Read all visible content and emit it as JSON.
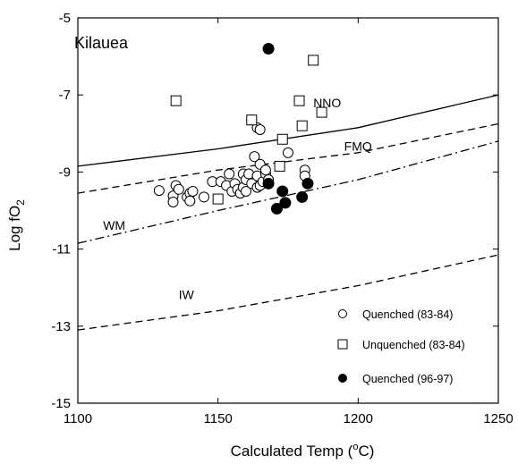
{
  "chart_data": {
    "type": "scatter",
    "title": "Kilauea",
    "xlabel": "Calculated Temp",
    "xlabel_unit_base": "(",
    "xlabel_unit_sup": "o",
    "xlabel_unit_rest": "C)",
    "ylabel_base": "Log fO",
    "ylabel_sub": "2",
    "xlim": [
      1100,
      1250
    ],
    "ylim": [
      -15,
      -5
    ],
    "x_ticks": [
      1100,
      1150,
      1200,
      1250
    ],
    "y_ticks": [
      -15,
      -13,
      -11,
      -9,
      -7,
      -5
    ],
    "grid": false,
    "legend_position": "bottom-right",
    "series": [
      {
        "name": "Quenched (83-84)",
        "marker": "open-circle",
        "points": [
          [
            1129,
            -9.48
          ],
          [
            1134,
            -9.62
          ],
          [
            1134,
            -9.78
          ],
          [
            1135,
            -9.35
          ],
          [
            1136,
            -9.45
          ],
          [
            1139,
            -9.65
          ],
          [
            1140,
            -9.55
          ],
          [
            1140,
            -9.75
          ],
          [
            1141,
            -9.5
          ],
          [
            1145,
            -9.65
          ],
          [
            1148,
            -9.25
          ],
          [
            1151,
            -9.25
          ],
          [
            1153,
            -9.35
          ],
          [
            1154,
            -9.05
          ],
          [
            1155,
            -9.5
          ],
          [
            1156,
            -9.3
          ],
          [
            1157,
            -9.45
          ],
          [
            1158,
            -9.55
          ],
          [
            1159,
            -9.05
          ],
          [
            1159,
            -9.4
          ],
          [
            1160,
            -9.2
          ],
          [
            1160,
            -9.5
          ],
          [
            1161,
            -9.05
          ],
          [
            1162,
            -9.3
          ],
          [
            1162,
            -7.65
          ],
          [
            1163,
            -8.6
          ],
          [
            1164,
            -7.85
          ],
          [
            1164,
            -9.1
          ],
          [
            1164,
            -9.4
          ],
          [
            1165,
            -7.9
          ],
          [
            1165,
            -8.8
          ],
          [
            1165,
            -9.35
          ],
          [
            1166,
            -9.25
          ],
          [
            1167,
            -9.05
          ],
          [
            1167,
            -8.95
          ],
          [
            1168,
            -9.2
          ],
          [
            1175,
            -8.5
          ],
          [
            1181,
            -8.95
          ],
          [
            1181,
            -9.1
          ]
        ]
      },
      {
        "name": "Unquenched (83-84)",
        "marker": "open-square",
        "points": [
          [
            1135,
            -7.15
          ],
          [
            1150,
            -9.7
          ],
          [
            1162,
            -7.65
          ],
          [
            1172,
            -8.85
          ],
          [
            1173,
            -8.15
          ],
          [
            1179,
            -7.15
          ],
          [
            1180,
            -7.8
          ],
          [
            1184,
            -6.1
          ],
          [
            1187,
            -7.45
          ]
        ]
      },
      {
        "name": "Quenched (96-97)",
        "marker": "filled-circle",
        "points": [
          [
            1168,
            -5.8
          ],
          [
            1168,
            -9.3
          ],
          [
            1171,
            -9.95
          ],
          [
            1173,
            -9.5
          ],
          [
            1174,
            -9.8
          ],
          [
            1180,
            -9.65
          ],
          [
            1182,
            -9.3
          ]
        ]
      }
    ],
    "buffer_curves": [
      {
        "name": "NNO",
        "style": "solid",
        "points": [
          [
            1100,
            -8.85
          ],
          [
            1150,
            -8.4
          ],
          [
            1200,
            -7.85
          ],
          [
            1250,
            -7.0
          ]
        ],
        "label_at": [
          1184,
          -7.32
        ]
      },
      {
        "name": "FMQ",
        "style": "dashed",
        "points": [
          [
            1100,
            -9.55
          ],
          [
            1150,
            -8.95
          ],
          [
            1200,
            -8.5
          ],
          [
            1250,
            -7.75
          ]
        ],
        "label_at": [
          1195,
          -8.45
        ]
      },
      {
        "name": "WM",
        "style": "dashdot",
        "points": [
          [
            1100,
            -10.85
          ],
          [
            1150,
            -10.0
          ],
          [
            1200,
            -9.2
          ],
          [
            1250,
            -8.2
          ]
        ],
        "label_at": [
          1109,
          -10.5
        ]
      },
      {
        "name": "IW",
        "style": "dashed",
        "points": [
          [
            1100,
            -13.1
          ],
          [
            1150,
            -12.6
          ],
          [
            1200,
            -11.95
          ],
          [
            1250,
            -11.15
          ]
        ],
        "label_at": [
          1136,
          -12.3
        ]
      }
    ]
  }
}
